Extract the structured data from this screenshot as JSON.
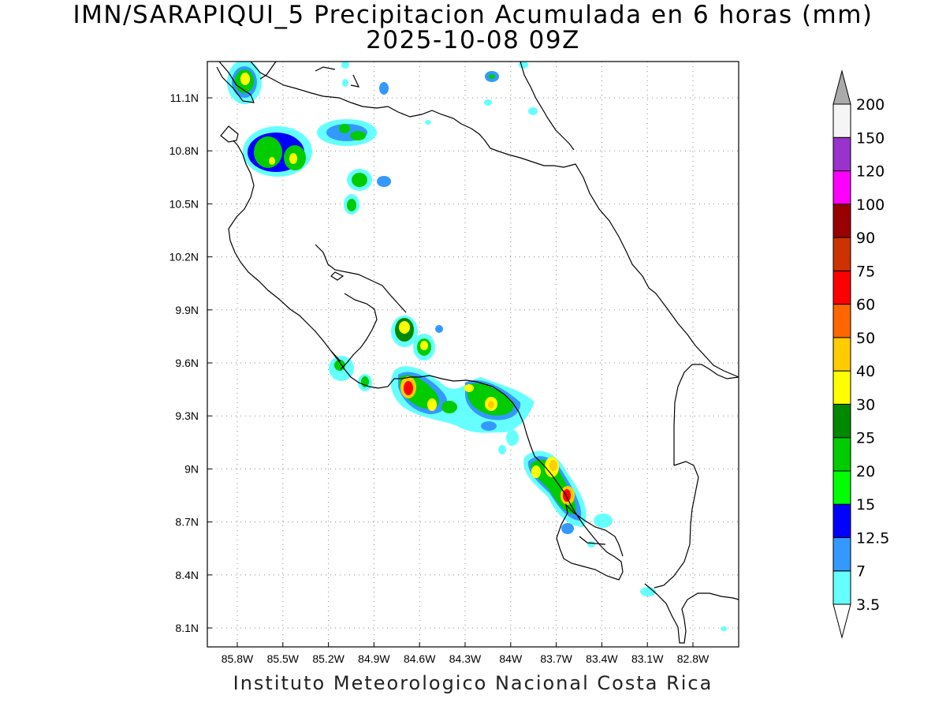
{
  "title": {
    "line1": "IMN/SARAPIQUI_5 Precipitacion Acumulada en 6 horas (mm)",
    "line2": "2025-10-08 09Z"
  },
  "credit": "Instituto Meteorologico Nacional Costa Rica",
  "map": {
    "lon_range": [
      -85.97,
      -82.5
    ],
    "lat_range": [
      8.0,
      11.3
    ],
    "x_ticks": [
      "85.8W",
      "85.5W",
      "85.2W",
      "84.9W",
      "84.6W",
      "84.3W",
      "84W",
      "83.7W",
      "83.4W",
      "83.1W",
      "82.8W"
    ],
    "y_ticks": [
      "11.1N",
      "10.8N",
      "10.5N",
      "10.2N",
      "9.9N",
      "9.6N",
      "9.3N",
      "9N",
      "8.7N",
      "8.4N",
      "8.1N"
    ],
    "grid": "dotted"
  },
  "colorbar": {
    "levels": [
      "3.5",
      "7",
      "12.5",
      "15",
      "20",
      "25",
      "30",
      "40",
      "50",
      "60",
      "75",
      "90",
      "100",
      "120",
      "150",
      "200"
    ],
    "colors": [
      "#66ffff",
      "#3399ff",
      "#0000ff",
      "#00ff00",
      "#00cc00",
      "#008800",
      "#ffff00",
      "#ffcc00",
      "#ff6600",
      "#ff0000",
      "#cc3300",
      "#990000",
      "#ff00ff",
      "#9933cc",
      "#f5f5f5",
      "#aaaaaa"
    ]
  }
}
